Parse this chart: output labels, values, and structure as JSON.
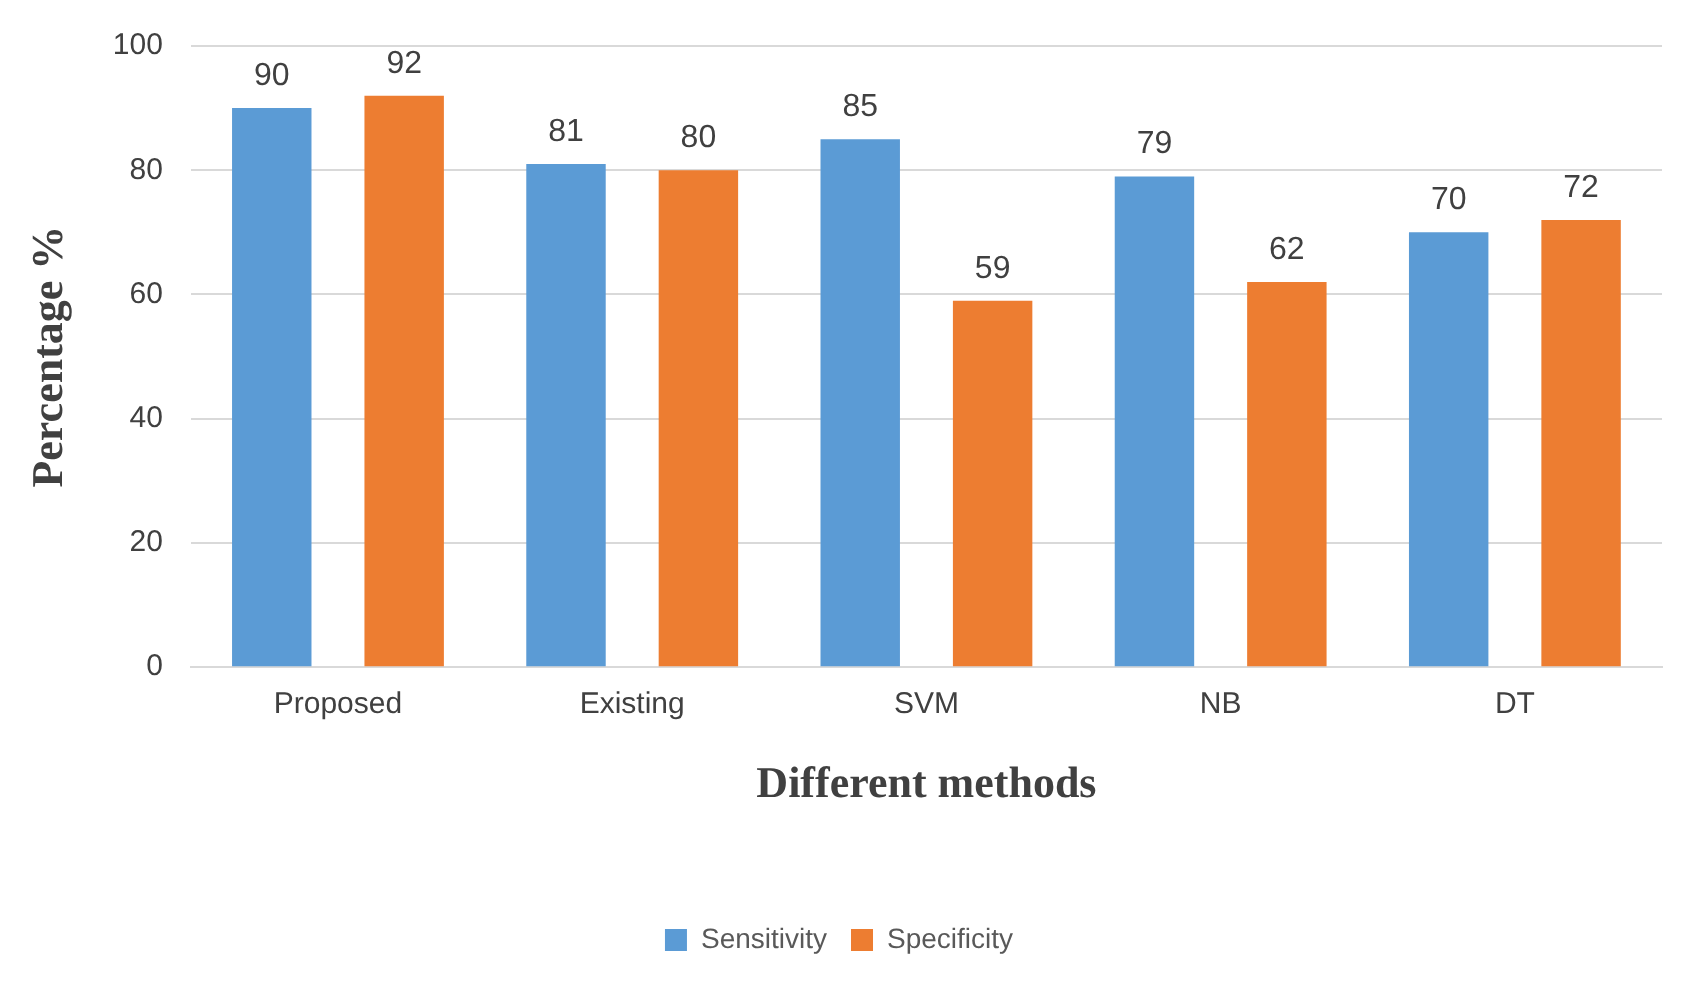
{
  "chart_data": {
    "type": "bar",
    "xlabel": "Different methods",
    "ylabel": "Percentage %",
    "categories": [
      "Proposed",
      "Existing",
      "SVM",
      "NB",
      "DT"
    ],
    "series": [
      {
        "name": "Sensitivity",
        "color": "#5b9bd5",
        "values": [
          90,
          81,
          85,
          79,
          70
        ]
      },
      {
        "name": "Specificity",
        "color": "#ed7d31",
        "values": [
          92,
          80,
          59,
          62,
          72
        ]
      }
    ],
    "ylim": [
      0,
      100
    ],
    "yticks": [
      0,
      20,
      40,
      60,
      80,
      100
    ],
    "grid": "y",
    "legend": "bottom",
    "data_labels": true
  }
}
